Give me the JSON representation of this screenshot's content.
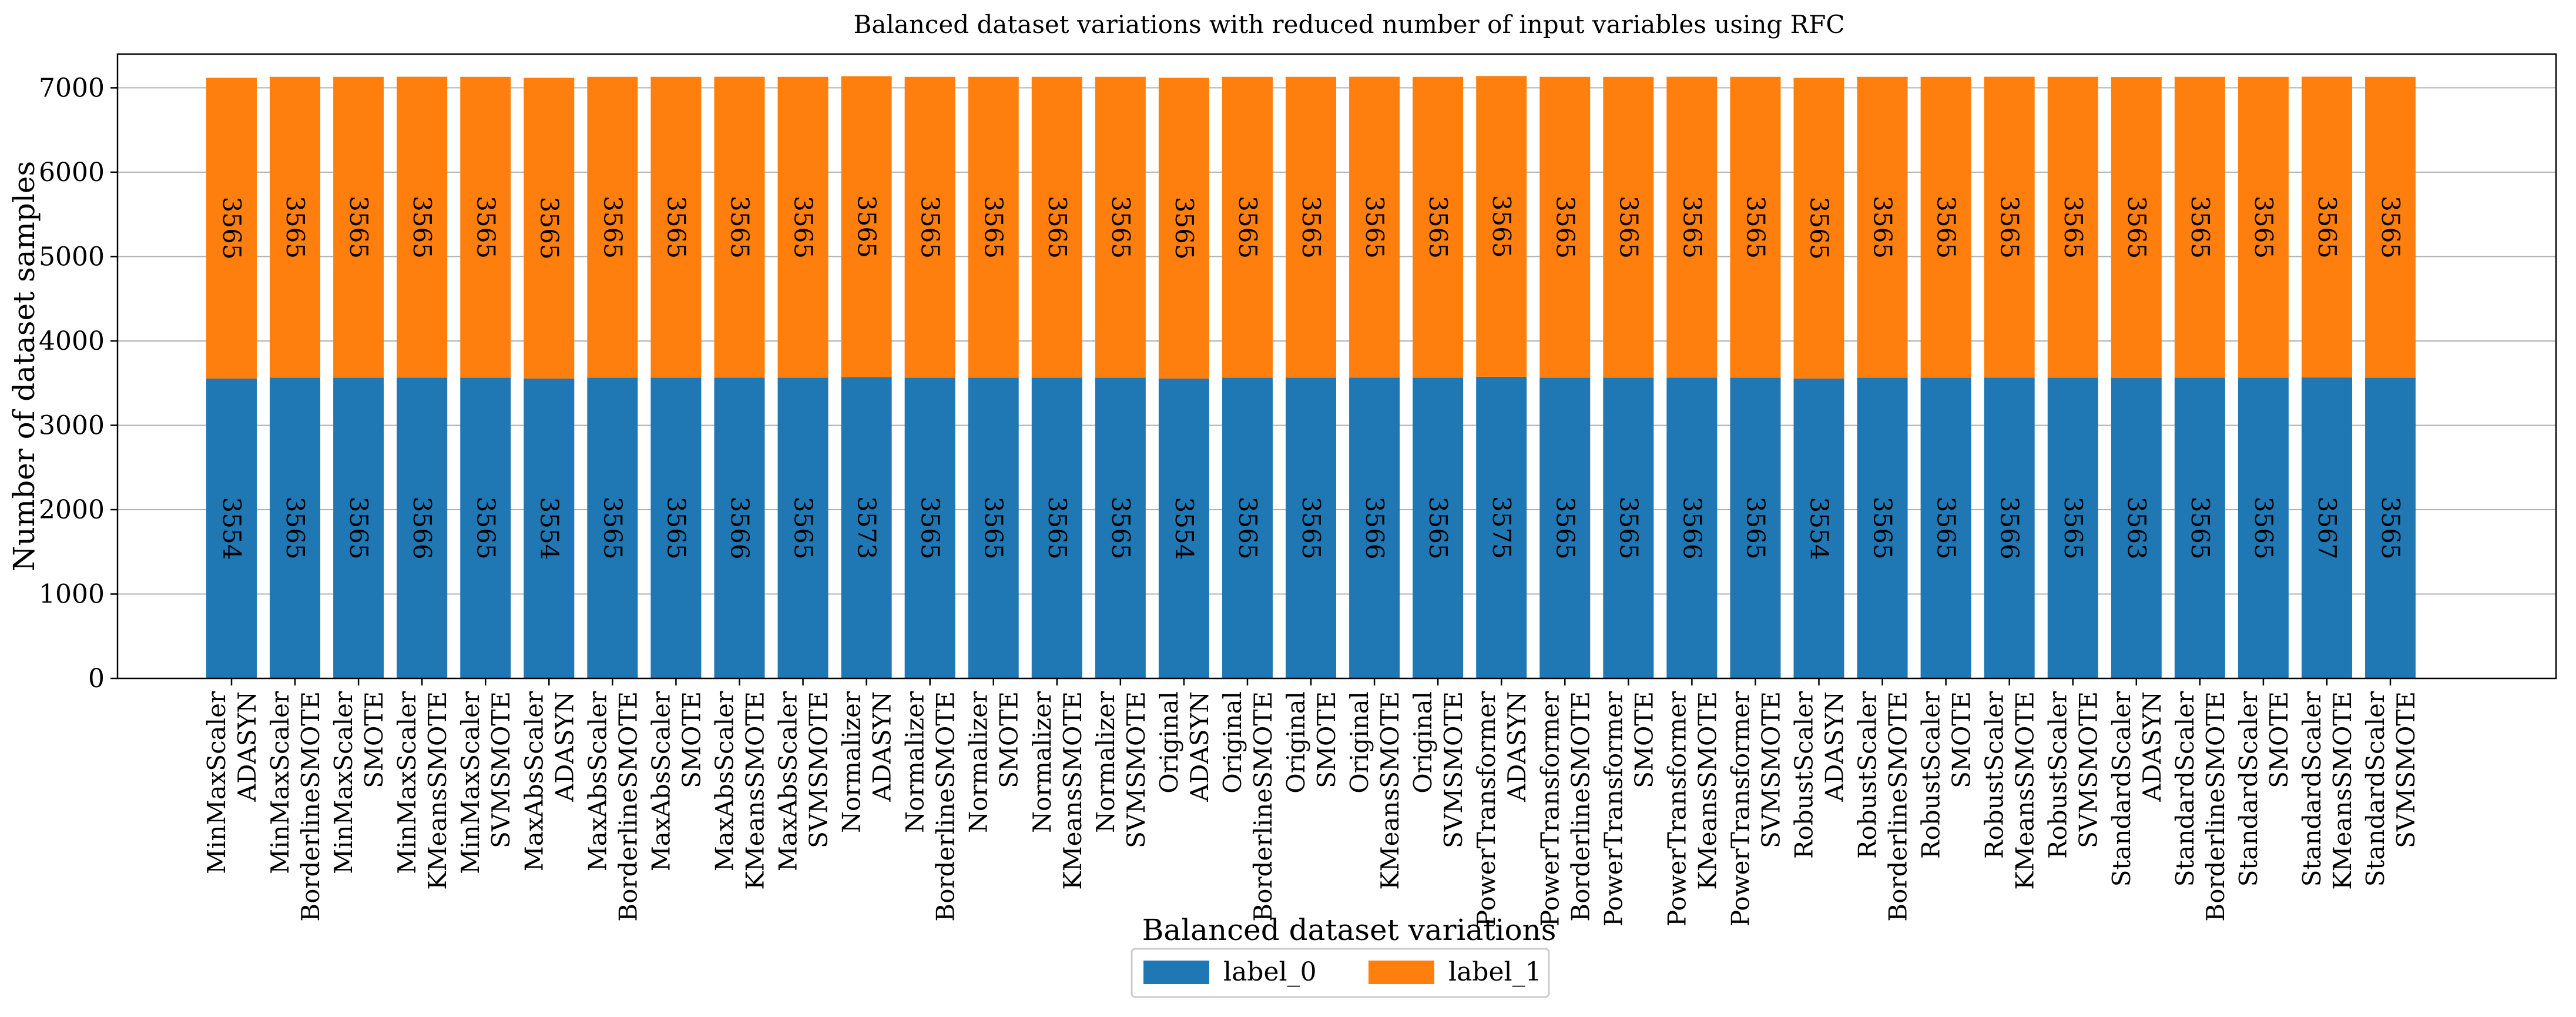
{
  "chart_data": {
    "type": "bar",
    "stacked": true,
    "title": "Balanced dataset variations with reduced number of input variables using RFC",
    "xlabel": "Balanced dataset variations",
    "ylabel": "Number of dataset samples",
    "ylim": [
      0,
      7400
    ],
    "yticks": [
      0,
      1000,
      2000,
      3000,
      4000,
      5000,
      6000,
      7000
    ],
    "grid": true,
    "legend_position": "bottom-center",
    "categories": [
      [
        "MinMaxScaler",
        "ADASYN"
      ],
      [
        "MinMaxScaler",
        "BorderlineSMOTE"
      ],
      [
        "MinMaxScaler",
        "SMOTE"
      ],
      [
        "MinMaxScaler",
        "KMeansSMOTE"
      ],
      [
        "MinMaxScaler",
        "SVMSMOTE"
      ],
      [
        "MaxAbsScaler",
        "ADASYN"
      ],
      [
        "MaxAbsScaler",
        "BorderlineSMOTE"
      ],
      [
        "MaxAbsScaler",
        "SMOTE"
      ],
      [
        "MaxAbsScaler",
        "KMeansSMOTE"
      ],
      [
        "MaxAbsScaler",
        "SVMSMOTE"
      ],
      [
        "Normalizer",
        "ADASYN"
      ],
      [
        "Normalizer",
        "BorderlineSMOTE"
      ],
      [
        "Normalizer",
        "SMOTE"
      ],
      [
        "Normalizer",
        "KMeansSMOTE"
      ],
      [
        "Normalizer",
        "SVMSMOTE"
      ],
      [
        "Original",
        "ADASYN"
      ],
      [
        "Original",
        "BorderlineSMOTE"
      ],
      [
        "Original",
        "SMOTE"
      ],
      [
        "Original",
        "KMeansSMOTE"
      ],
      [
        "Original",
        "SVMSMOTE"
      ],
      [
        "PowerTransformer",
        "ADASYN"
      ],
      [
        "PowerTransformer",
        "BorderlineSMOTE"
      ],
      [
        "PowerTransformer",
        "SMOTE"
      ],
      [
        "PowerTransformer",
        "KMeansSMOTE"
      ],
      [
        "PowerTransformer",
        "SVMSMOTE"
      ],
      [
        "RobustScaler",
        "ADASYN"
      ],
      [
        "RobustScaler",
        "BorderlineSMOTE"
      ],
      [
        "RobustScaler",
        "SMOTE"
      ],
      [
        "RobustScaler",
        "KMeansSMOTE"
      ],
      [
        "RobustScaler",
        "SVMSMOTE"
      ],
      [
        "StandardScaler",
        "ADASYN"
      ],
      [
        "StandardScaler",
        "BorderlineSMOTE"
      ],
      [
        "StandardScaler",
        "SMOTE"
      ],
      [
        "StandardScaler",
        "KMeansSMOTE"
      ],
      [
        "StandardScaler",
        "SVMSMOTE"
      ]
    ],
    "series": [
      {
        "name": "label_0",
        "color": "#1f77b4",
        "values": [
          3554,
          3565,
          3565,
          3566,
          3565,
          3554,
          3565,
          3565,
          3566,
          3565,
          3573,
          3565,
          3565,
          3565,
          3565,
          3554,
          3565,
          3565,
          3566,
          3565,
          3575,
          3565,
          3565,
          3566,
          3565,
          3554,
          3565,
          3565,
          3566,
          3565,
          3563,
          3565,
          3565,
          3567,
          3565
        ]
      },
      {
        "name": "label_1",
        "color": "#ff7f0e",
        "values": [
          3565,
          3565,
          3565,
          3565,
          3565,
          3565,
          3565,
          3565,
          3565,
          3565,
          3565,
          3565,
          3565,
          3565,
          3565,
          3565,
          3565,
          3565,
          3565,
          3565,
          3565,
          3565,
          3565,
          3565,
          3565,
          3565,
          3565,
          3565,
          3565,
          3565,
          3565,
          3565,
          3565,
          3565,
          3565
        ]
      }
    ]
  }
}
